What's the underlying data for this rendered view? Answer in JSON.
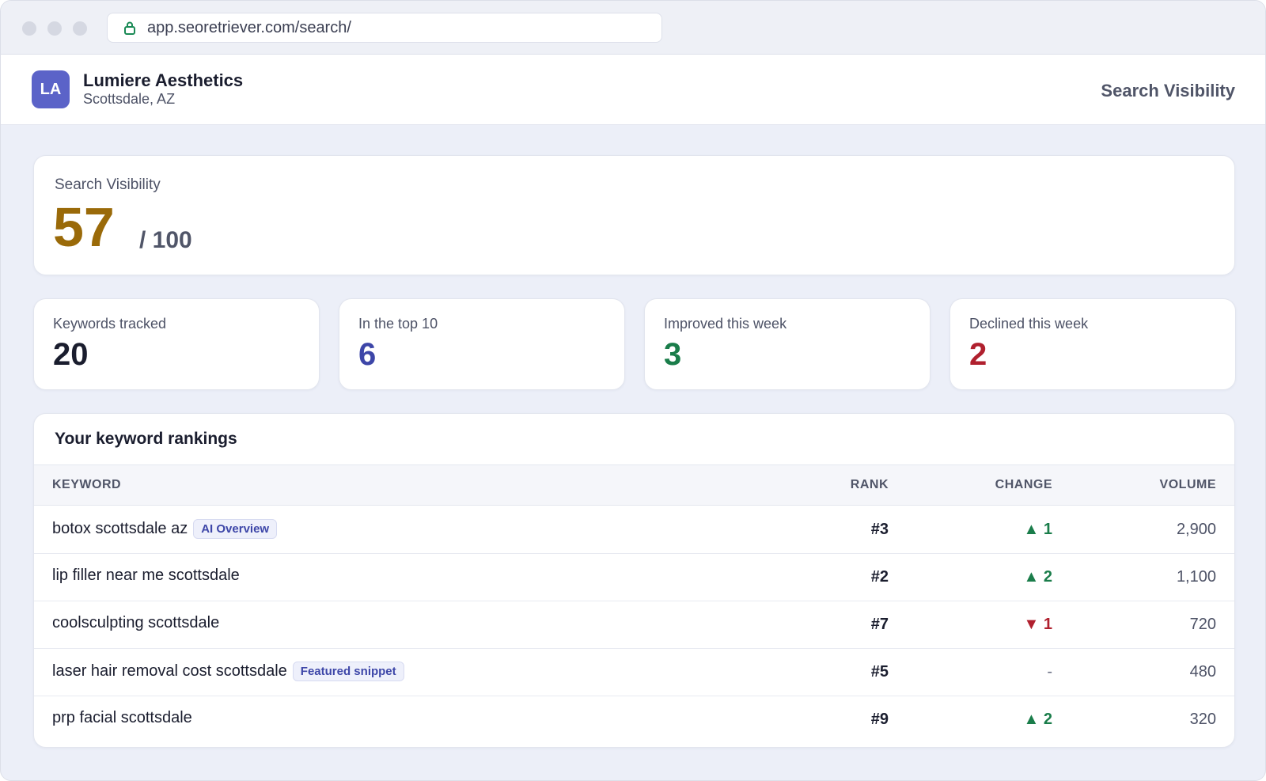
{
  "browser": {
    "url": "app.seoretriever.com/search/"
  },
  "header": {
    "logo_initials": "LA",
    "business_name": "Lumiere Aesthetics",
    "location": "Scottsdale, AZ",
    "page_title": "Search Visibility"
  },
  "score": {
    "label": "Search Visibility",
    "value": "57",
    "max": "/ 100",
    "color": "#9a6a09"
  },
  "stats": [
    {
      "label": "Keywords tracked",
      "value": "20",
      "color": "#1a1d2e"
    },
    {
      "label": "In the top 10",
      "value": "6",
      "color": "#3d46a8"
    },
    {
      "label": "Improved this week",
      "value": "3",
      "color": "#1a7d4a"
    },
    {
      "label": "Declined this week",
      "value": "2",
      "color": "#b0202e"
    }
  ],
  "rankings": {
    "title": "Your keyword rankings",
    "columns": {
      "keyword": "KEYWORD",
      "rank": "RANK",
      "change": "CHANGE",
      "volume": "VOLUME"
    },
    "rows": [
      {
        "keyword": "botox scottsdale az",
        "badge": "AI Overview",
        "rank": "#3",
        "change": "▲ 1",
        "trend": "up",
        "volume": "2,900"
      },
      {
        "keyword": "lip filler near me scottsdale",
        "badge": "",
        "rank": "#2",
        "change": "▲ 2",
        "trend": "up",
        "volume": "1,100"
      },
      {
        "keyword": "coolsculpting scottsdale",
        "badge": "",
        "rank": "#7",
        "change": "▼ 1",
        "trend": "down",
        "volume": "720"
      },
      {
        "keyword": "laser hair removal cost scottsdale",
        "badge": "Featured snippet",
        "rank": "#5",
        "change": "-",
        "trend": "flat",
        "volume": "480"
      },
      {
        "keyword": "prp facial scottsdale",
        "badge": "",
        "rank": "#9",
        "change": "▲ 2",
        "trend": "up",
        "volume": "320"
      }
    ]
  }
}
